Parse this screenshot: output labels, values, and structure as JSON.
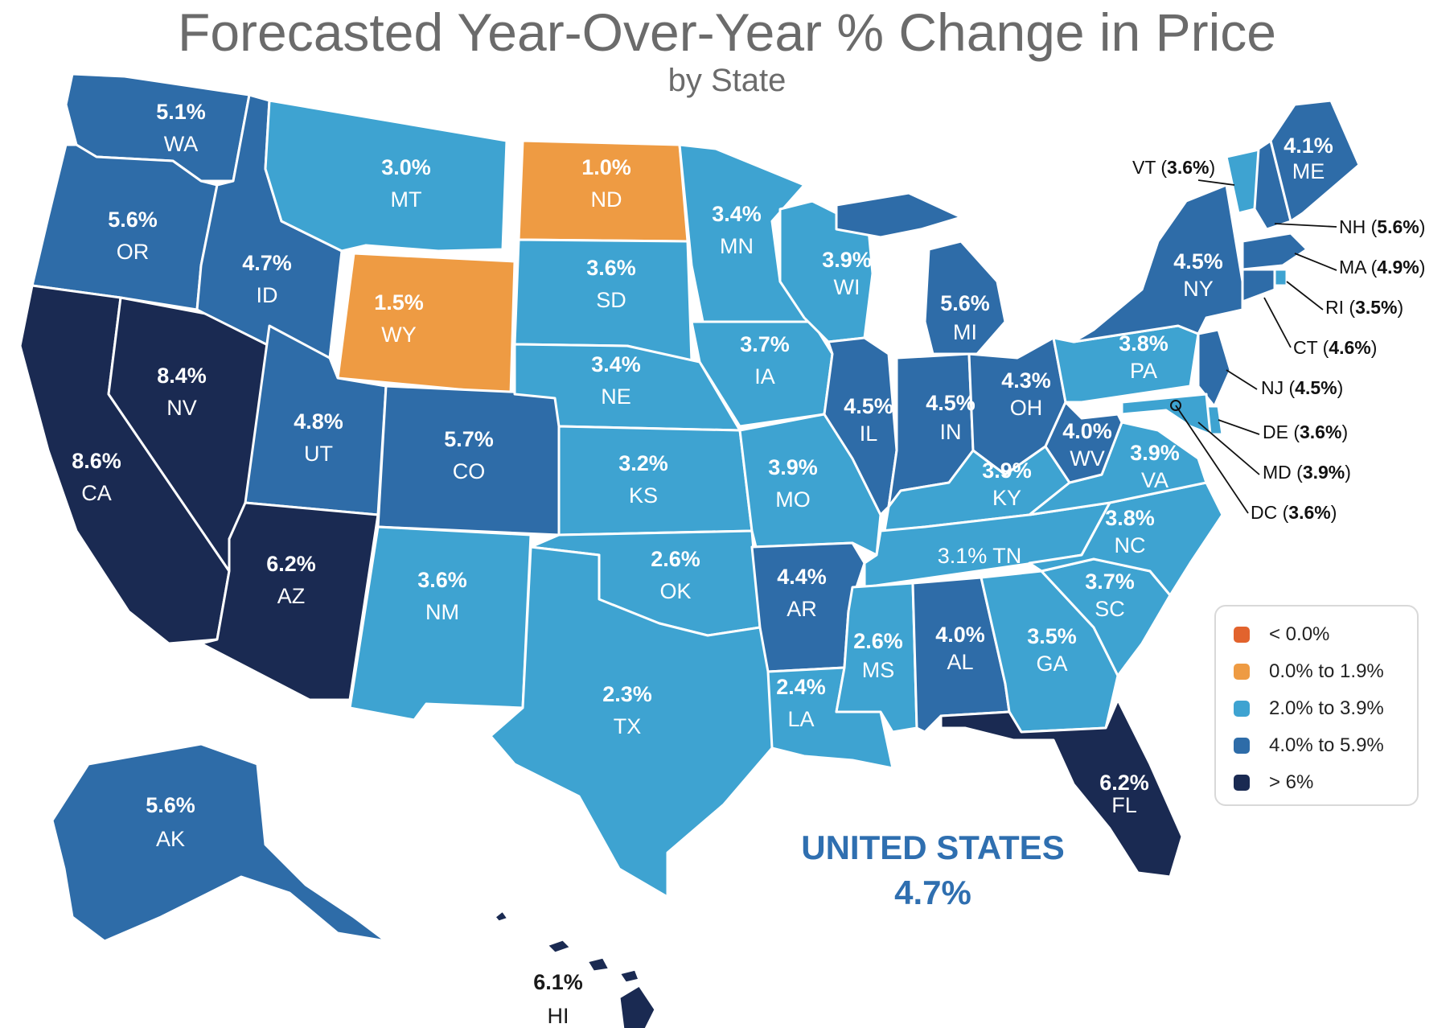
{
  "title": "Forecasted Year-Over-Year % Change in Price",
  "subtitle": "by State",
  "colors": {
    "lt0": "#e2632d",
    "orange": "#ee9b43",
    "light": "#3ea3d1",
    "mid": "#2e6ca8",
    "dark": "#1a2a52",
    "border": "#ffffff"
  },
  "legend": [
    {
      "label": "< 0.0%",
      "color": "#e2632d"
    },
    {
      "label": "0.0% to 1.9%",
      "color": "#ee9b43"
    },
    {
      "label": "2.0% to 3.9%",
      "color": "#3ea3d1"
    },
    {
      "label": "4.0% to 5.9%",
      "color": "#2e6ca8"
    },
    {
      "label": "> 6%",
      "color": "#1a2a52"
    }
  ],
  "national": {
    "name": "UNITED STATES",
    "value": "4.7%"
  },
  "states": {
    "WA": {
      "value": "5.1%"
    },
    "OR": {
      "value": "5.6%"
    },
    "CA": {
      "value": "8.6%"
    },
    "NV": {
      "value": "8.4%"
    },
    "ID": {
      "value": "4.7%"
    },
    "MT": {
      "value": "3.0%"
    },
    "WY": {
      "value": "1.5%"
    },
    "UT": {
      "value": "4.8%"
    },
    "AZ": {
      "value": "6.2%"
    },
    "CO": {
      "value": "5.7%"
    },
    "NM": {
      "value": "3.6%"
    },
    "ND": {
      "value": "1.0%"
    },
    "SD": {
      "value": "3.6%"
    },
    "NE": {
      "value": "3.4%"
    },
    "KS": {
      "value": "3.2%"
    },
    "OK": {
      "value": "2.6%"
    },
    "TX": {
      "value": "2.3%"
    },
    "MN": {
      "value": "3.4%"
    },
    "IA": {
      "value": "3.7%"
    },
    "MO": {
      "value": "3.9%"
    },
    "AR": {
      "value": "4.4%"
    },
    "LA": {
      "value": "2.4%"
    },
    "WI": {
      "value": "3.9%"
    },
    "IL": {
      "value": "4.5%"
    },
    "MI": {
      "value": "5.6%"
    },
    "IN": {
      "value": "4.5%"
    },
    "OH": {
      "value": "4.3%"
    },
    "KY": {
      "value": "3.9%"
    },
    "TN": {
      "value": "3.1%"
    },
    "MS": {
      "value": "2.6%"
    },
    "AL": {
      "value": "4.0%"
    },
    "GA": {
      "value": "3.5%"
    },
    "FL": {
      "value": "6.2%"
    },
    "SC": {
      "value": "3.7%"
    },
    "NC": {
      "value": "3.8%"
    },
    "VA": {
      "value": "3.9%"
    },
    "WV": {
      "value": "4.0%"
    },
    "PA": {
      "value": "3.8%"
    },
    "NY": {
      "value": "4.5%"
    },
    "ME": {
      "value": "4.1%"
    },
    "AK": {
      "value": "5.6%"
    },
    "HI": {
      "value": "6.1%"
    },
    "VT": {
      "value": "3.6%"
    },
    "NH": {
      "value": "5.6%"
    },
    "MA": {
      "value": "4.9%"
    },
    "RI": {
      "value": "3.5%"
    },
    "CT": {
      "value": "4.6%"
    },
    "NJ": {
      "value": "4.5%"
    },
    "DE": {
      "value": "3.6%"
    },
    "MD": {
      "value": "3.9%"
    },
    "DC": {
      "value": "3.6%"
    }
  }
}
